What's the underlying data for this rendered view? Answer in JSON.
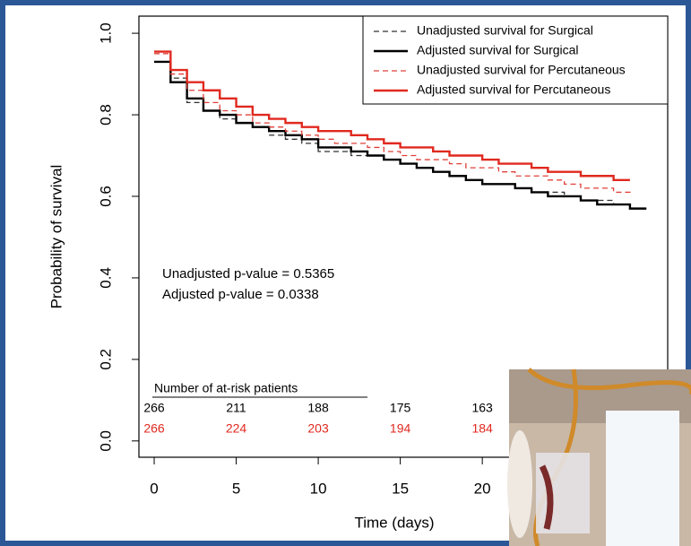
{
  "chart_data": {
    "type": "step",
    "x_label": "Time (days)",
    "y_label": "Probability of survival",
    "x": [
      0,
      1,
      2,
      3,
      4,
      5,
      6,
      7,
      8,
      9,
      10,
      11,
      12,
      13,
      14,
      15,
      16,
      17,
      18,
      19,
      20,
      21,
      22,
      23,
      24,
      25,
      26,
      27,
      28,
      29,
      30
    ],
    "series": [
      {
        "name": "Unadjusted survival for Surgical",
        "color": "#333333",
        "style": "dashed",
        "values": [
          0.93,
          0.89,
          0.83,
          0.81,
          0.79,
          0.78,
          0.77,
          0.75,
          0.74,
          0.73,
          0.71,
          0.71,
          0.7,
          0.7,
          0.69,
          0.68,
          0.67,
          0.66,
          0.65,
          0.64,
          0.63,
          0.63,
          0.62,
          0.61,
          0.61,
          0.6,
          0.59,
          0.59,
          0.58,
          0.57,
          0.57
        ]
      },
      {
        "name": "Adjusted survival for Surgical",
        "color": "#000000",
        "style": "solid",
        "values": [
          0.93,
          0.88,
          0.84,
          0.81,
          0.8,
          0.78,
          0.77,
          0.76,
          0.75,
          0.74,
          0.72,
          0.72,
          0.71,
          0.7,
          0.69,
          0.68,
          0.67,
          0.66,
          0.65,
          0.64,
          0.63,
          0.63,
          0.62,
          0.61,
          0.6,
          0.6,
          0.59,
          0.58,
          0.58,
          0.57,
          0.57
        ]
      },
      {
        "name": "Unadjusted survival for Percutaneous",
        "color": "#e0403a",
        "style": "dashed",
        "values": [
          0.95,
          0.9,
          0.86,
          0.83,
          0.81,
          0.8,
          0.78,
          0.77,
          0.76,
          0.75,
          0.74,
          0.73,
          0.73,
          0.72,
          0.71,
          0.7,
          0.69,
          0.69,
          0.68,
          0.67,
          0.67,
          0.66,
          0.65,
          0.65,
          0.64,
          0.63,
          0.62,
          0.62,
          0.61,
          0.6,
          null
        ]
      },
      {
        "name": "Adjusted survival for Percutaneous",
        "color": "#e0291f",
        "style": "solid",
        "values": [
          0.955,
          0.91,
          0.88,
          0.86,
          0.84,
          0.82,
          0.8,
          0.79,
          0.78,
          0.77,
          0.76,
          0.76,
          0.75,
          0.74,
          0.73,
          0.72,
          0.72,
          0.71,
          0.7,
          0.7,
          0.69,
          0.68,
          0.68,
          0.67,
          0.66,
          0.66,
          0.65,
          0.65,
          0.64,
          0.64,
          null
        ]
      }
    ],
    "xlim": [
      -0.93,
      31.3
    ],
    "ylim": [
      -0.04,
      1.042
    ],
    "xticks": [
      0,
      5,
      10,
      15,
      20
    ],
    "yticks": [
      {
        "value": 0,
        "label": "0.0"
      },
      0.2,
      0.4,
      0.6,
      0.8,
      {
        "value": 1,
        "label": "1.0"
      }
    ],
    "legend": "top-right",
    "annotations": [
      "Unadjusted p-value = 0.5365",
      "Adjusted p-value = 0.0338"
    ],
    "at_risk": {
      "title": "Number of at-risk patients",
      "times": [
        0,
        5,
        10,
        15,
        20
      ],
      "rows": [
        {
          "color": "#000000",
          "values": [
            266,
            211,
            188,
            175,
            163
          ]
        },
        {
          "color": "#e0291f",
          "values": [
            266,
            224,
            203,
            194,
            184
          ]
        }
      ]
    }
  }
}
